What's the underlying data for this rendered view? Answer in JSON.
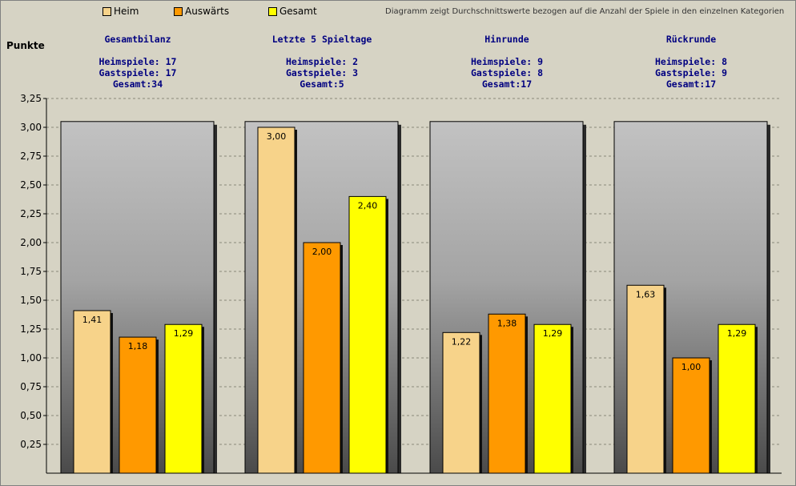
{
  "chart_data": {
    "type": "bar",
    "ylabel": "Punkte",
    "note": "Diagramm zeigt Durchschnittswerte bezogen auf die Anzahl der Spiele in den einzelnen Kategorien",
    "ylim": [
      0,
      3.25
    ],
    "yticks": [
      "3,25",
      "3,00",
      "2,75",
      "2,50",
      "2,25",
      "2,00",
      "1,75",
      "1,50",
      "1,25",
      "1,00",
      "0,75",
      "0,50",
      "0,25"
    ],
    "grid": true,
    "legend_position": "top",
    "colors": {
      "Heim": "#f7d38a",
      "Auswärts": "#ff9900",
      "Gesamt": "#ffff00"
    },
    "series": [
      {
        "name": "Heim",
        "values": [
          1.41,
          3.0,
          1.22,
          1.63
        ],
        "labels": [
          "1,41",
          "3,00",
          "1,22",
          "1,63"
        ]
      },
      {
        "name": "Auswärts",
        "values": [
          1.18,
          2.0,
          1.38,
          1.0
        ],
        "labels": [
          "1,18",
          "2,00",
          "1,38",
          "1,00"
        ]
      },
      {
        "name": "Gesamt",
        "values": [
          1.29,
          2.4,
          1.29,
          1.29
        ],
        "labels": [
          "1,29",
          "2,40",
          "1,29",
          "1,29"
        ]
      }
    ],
    "categories": [
      {
        "title": "Gesamtbilanz",
        "heim": "Heimspiele: 17",
        "gast": "Gastspiele: 17",
        "gesamt": "Gesamt:34"
      },
      {
        "title": "Letzte 5 Spieltage",
        "heim": "Heimspiele: 2",
        "gast": "Gastspiele: 3",
        "gesamt": "Gesamt:5"
      },
      {
        "title": "Hinrunde",
        "heim": "Heimspiele: 9",
        "gast": "Gastspiele: 8",
        "gesamt": "Gesamt:17"
      },
      {
        "title": "Rückrunde",
        "heim": "Heimspiele: 8",
        "gast": "Gastspiele: 9",
        "gesamt": "Gesamt:17"
      }
    ]
  }
}
